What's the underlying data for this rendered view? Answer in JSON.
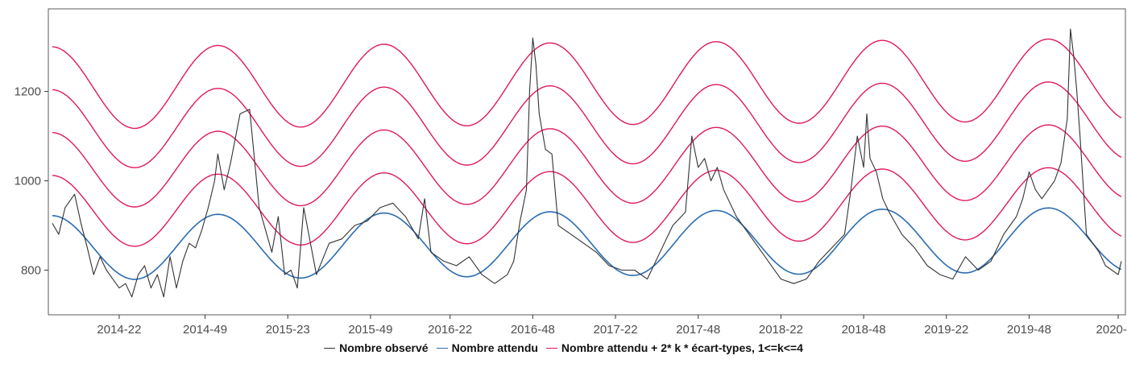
{
  "chart_data": {
    "type": "line",
    "title": "",
    "xlabel": "",
    "ylabel": "",
    "y_ticks": [
      800,
      1000,
      1200
    ],
    "ylim": [
      700,
      1385
    ],
    "x_tick_labels": [
      "2014-22",
      "2014-49",
      "2015-23",
      "2015-49",
      "2016-22",
      "2016-48",
      "2017-22",
      "2017-48",
      "2018-22",
      "2018-48",
      "2019-22",
      "2019-48",
      "2020-23"
    ],
    "x_tick_weeks": [
      22,
      49,
      75,
      101,
      126,
      152,
      178,
      204,
      230,
      256,
      282,
      308,
      336
    ],
    "x_range_weeks": [
      1,
      337
    ],
    "grid": false,
    "legend_position": "bottom",
    "colors": {
      "observed": "#333333",
      "expected": "#2b6cb0",
      "threshold": "#e0195a"
    },
    "series": [
      {
        "key": "observed",
        "name": "Nombre observé",
        "x_weeks": [
          1,
          3,
          5,
          8,
          10,
          12,
          14,
          16,
          18,
          20,
          22,
          24,
          26,
          28,
          30,
          32,
          34,
          36,
          38,
          40,
          42,
          44,
          46,
          48,
          50,
          52,
          53,
          55,
          57,
          60,
          63,
          66,
          70,
          72,
          74,
          76,
          78,
          80,
          84,
          88,
          92,
          96,
          100,
          104,
          108,
          112,
          116,
          118,
          120,
          124,
          128,
          132,
          136,
          140,
          144,
          146,
          148,
          150,
          151,
          152,
          153,
          154,
          156,
          158,
          160,
          164,
          168,
          172,
          176,
          180,
          184,
          188,
          192,
          196,
          200,
          202,
          204,
          206,
          208,
          210,
          212,
          214,
          216,
          218,
          222,
          226,
          230,
          234,
          238,
          242,
          246,
          250,
          252,
          254,
          256,
          257,
          258,
          260,
          262,
          264,
          268,
          272,
          276,
          280,
          284,
          288,
          292,
          296,
          300,
          304,
          306,
          308,
          310,
          312,
          316,
          318,
          320,
          321,
          322,
          323,
          324,
          325,
          326,
          328,
          330,
          332,
          334,
          336,
          337
        ],
        "values": [
          905,
          880,
          940,
          970,
          905,
          850,
          790,
          830,
          800,
          780,
          760,
          770,
          740,
          790,
          810,
          760,
          790,
          740,
          830,
          760,
          820,
          860,
          850,
          890,
          940,
          1000,
          1060,
          980,
          1040,
          1150,
          1160,
          940,
          840,
          920,
          790,
          800,
          760,
          940,
          790,
          860,
          870,
          900,
          910,
          940,
          950,
          920,
          870,
          960,
          840,
          820,
          810,
          830,
          790,
          770,
          790,
          820,
          910,
          980,
          1200,
          1320,
          1260,
          1150,
          1070,
          1060,
          900,
          880,
          860,
          840,
          810,
          800,
          800,
          780,
          840,
          900,
          930,
          1100,
          1030,
          1050,
          1000,
          1030,
          980,
          950,
          920,
          900,
          860,
          820,
          780,
          770,
          780,
          820,
          850,
          880,
          980,
          1100,
          1030,
          1150,
          1050,
          1020,
          960,
          930,
          880,
          850,
          810,
          790,
          780,
          830,
          800,
          820,
          880,
          920,
          960,
          1020,
          980,
          960,
          1000,
          1040,
          1140,
          1340,
          1280,
          1200,
          1100,
          990,
          880,
          860,
          840,
          810,
          800,
          790,
          820
        ]
      },
      {
        "key": "expected",
        "name": "Nombre attendu",
        "baseline": 850,
        "baseline_slope_per_week": 0.055,
        "amplitude": 72,
        "period_weeks": 52.2,
        "peak_week": 53
      },
      {
        "key": "threshold",
        "name": "Nombre attendu + 2* k * écart-types, 1<=k<=4",
        "base_offset_k1": 82,
        "offset_step": 92,
        "amplitude_k1": 80,
        "amplitude_step": 4,
        "k_values": [
          1,
          2,
          3,
          4
        ]
      }
    ]
  },
  "legend": {
    "observed_label": "Nombre observé",
    "expected_label": "Nombre attendu",
    "threshold_label": "Nombre attendu + 2* k * écart-types, 1<=k<=4"
  }
}
